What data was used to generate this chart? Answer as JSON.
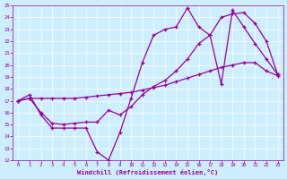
{
  "xlabel": "Windchill (Refroidissement éolien,°C)",
  "background_color": "#cceeff",
  "line_color": "#990099",
  "grid_color": "#ffffff",
  "xlim": [
    -0.5,
    23.5
  ],
  "ylim": [
    12,
    25
  ],
  "xticks": [
    0,
    1,
    2,
    3,
    4,
    5,
    6,
    7,
    8,
    9,
    10,
    11,
    12,
    13,
    14,
    15,
    16,
    17,
    18,
    19,
    20,
    21,
    22,
    23
  ],
  "yticks": [
    12,
    13,
    14,
    15,
    16,
    17,
    18,
    19,
    20,
    21,
    22,
    23,
    24,
    25
  ],
  "line1_x": [
    0,
    1,
    2,
    3,
    4,
    5,
    6,
    7,
    8,
    9,
    10,
    11,
    12,
    13,
    14,
    15,
    16,
    17,
    18,
    19,
    20,
    21,
    22,
    23
  ],
  "line1_y": [
    17.0,
    17.5,
    15.8,
    14.7,
    14.7,
    14.7,
    14.7,
    12.7,
    12.0,
    14.3,
    17.2,
    20.2,
    22.5,
    23.0,
    23.2,
    24.8,
    23.2,
    22.5,
    18.4,
    24.6,
    23.2,
    21.8,
    20.5,
    19.2
  ],
  "line2_x": [
    0,
    1,
    2,
    3,
    4,
    5,
    6,
    7,
    8,
    9,
    10,
    11,
    12,
    13,
    14,
    15,
    16,
    17,
    18,
    19,
    20,
    21,
    22,
    23
  ],
  "line2_y": [
    17.0,
    17.2,
    16.0,
    15.1,
    15.0,
    15.1,
    15.2,
    15.2,
    16.2,
    15.8,
    16.5,
    17.5,
    18.2,
    18.7,
    19.5,
    20.5,
    21.8,
    22.5,
    24.0,
    24.3,
    24.4,
    23.5,
    22.0,
    19.2
  ],
  "line3_x": [
    0,
    1,
    2,
    3,
    4,
    5,
    6,
    7,
    8,
    9,
    10,
    11,
    12,
    13,
    14,
    15,
    16,
    17,
    18,
    19,
    20,
    21,
    22,
    23
  ],
  "line3_y": [
    17.0,
    17.2,
    17.2,
    17.2,
    17.2,
    17.2,
    17.3,
    17.4,
    17.5,
    17.6,
    17.7,
    17.9,
    18.1,
    18.3,
    18.6,
    18.9,
    19.2,
    19.5,
    19.8,
    20.0,
    20.2,
    20.2,
    19.5,
    19.1
  ]
}
